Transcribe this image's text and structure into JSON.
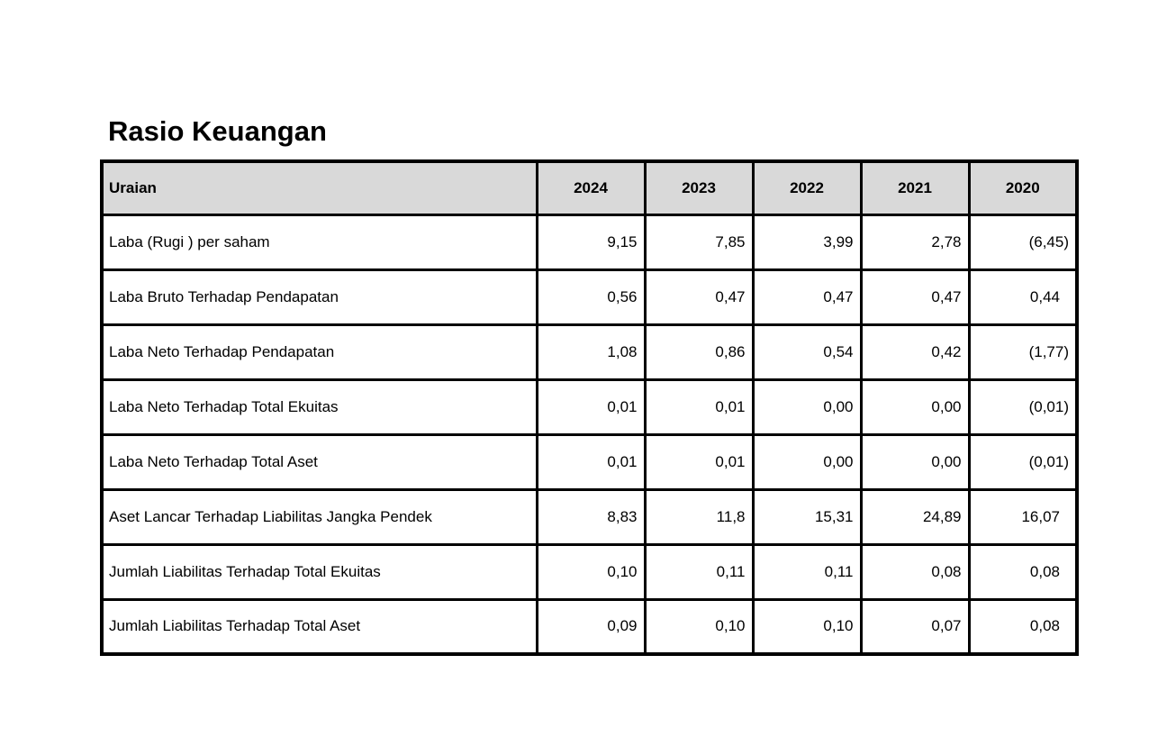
{
  "page": {
    "title": "Rasio Keuangan"
  },
  "table": {
    "header": {
      "label_col": "Uraian",
      "year_cols": [
        "2024",
        "2023",
        "2022",
        "2021",
        "2020"
      ]
    },
    "rows": [
      {
        "label": "Laba (Rugi ) per saham",
        "values": [
          "9,15",
          "7,85",
          "3,99",
          "2,78",
          "(6,45)"
        ]
      },
      {
        "label": "Laba Bruto Terhadap Pendapatan",
        "values": [
          "0,56",
          "0,47",
          "0,47",
          "0,47",
          "0,44"
        ]
      },
      {
        "label": "Laba Neto Terhadap Pendapatan",
        "values": [
          "1,08",
          "0,86",
          "0,54",
          "0,42",
          "(1,77)"
        ]
      },
      {
        "label": "Laba Neto Terhadap Total Ekuitas",
        "values": [
          "0,01",
          "0,01",
          "0,00",
          "0,00",
          "(0,01)"
        ]
      },
      {
        "label": "Laba Neto Terhadap Total Aset",
        "values": [
          "0,01",
          "0,01",
          "0,00",
          "0,00",
          "(0,01)"
        ]
      },
      {
        "label": "Aset Lancar Terhadap Liabilitas Jangka Pendek",
        "values": [
          "8,83",
          "11,8",
          "15,31",
          "24,89",
          "16,07"
        ]
      },
      {
        "label": "Jumlah Liabilitas Terhadap Total Ekuitas",
        "values": [
          "0,10",
          "0,11",
          "0,11",
          "0,08",
          "0,08"
        ]
      },
      {
        "label": "Jumlah Liabilitas Terhadap Total Aset",
        "values": [
          "0,09",
          "0,10",
          "0,10",
          "0,07",
          "0,08"
        ]
      }
    ],
    "colors": {
      "header_fill": "#d9d9d9",
      "border": "#000000",
      "text": "#000000"
    }
  }
}
